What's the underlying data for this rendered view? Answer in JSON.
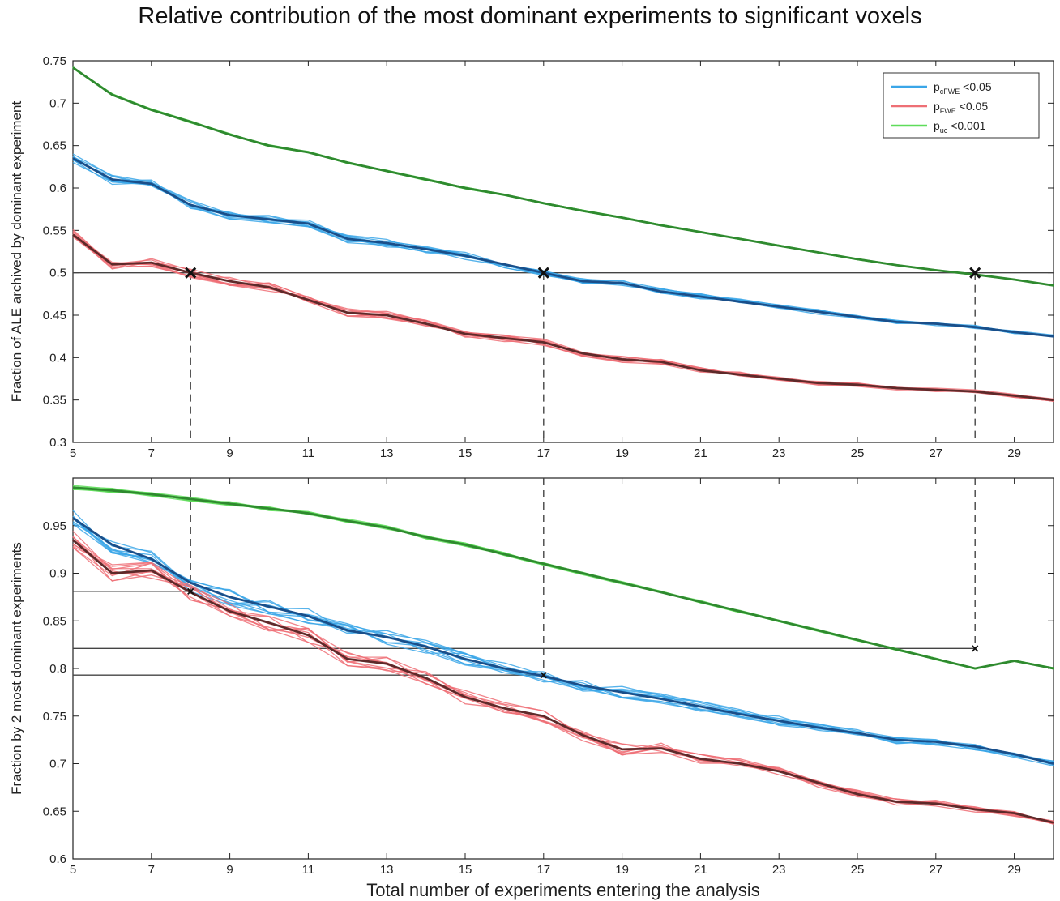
{
  "title": "Relative contribution of the most dominant experiments to significant voxels",
  "xlabel": "Total number of experiments entering the analysis",
  "colors": {
    "blue": "#3aa6e8",
    "blue_mean": "#1a4f8a",
    "red": "#ee6f75",
    "red_mean": "#5e2a2a",
    "green": "#5fdc5a",
    "green_mean": "#2f8a2f",
    "axis": "#222222",
    "reference": "#444444"
  },
  "legend": [
    {
      "main": "p",
      "sub": "cFWE",
      "rest": " <0.05",
      "color": "#3aa6e8"
    },
    {
      "main": "p",
      "sub": "FWE",
      "rest": " <0.05",
      "color": "#ee6f75"
    },
    {
      "main": "p",
      "sub": "uc",
      "rest": " <0.001",
      "color": "#5fdc5a"
    }
  ],
  "chart_data": [
    {
      "type": "line",
      "ylabel": "Fraction of ALE archived by dominant experiment",
      "xlim": [
        5,
        30
      ],
      "ylim": [
        0.3,
        0.75
      ],
      "xticks": [
        5,
        7,
        9,
        11,
        13,
        15,
        17,
        19,
        21,
        23,
        25,
        27,
        29
      ],
      "yticks": [
        0.3,
        0.35,
        0.4,
        0.45,
        0.5,
        0.55,
        0.6,
        0.65,
        0.7,
        0.75
      ],
      "ytick_labels": [
        "0.3",
        "0.35",
        "0.4",
        "0.45",
        "0.5",
        "0.55",
        "0.6",
        "0.65",
        "0.7",
        "0.75"
      ],
      "x": [
        5,
        6,
        7,
        8,
        9,
        10,
        11,
        12,
        13,
        14,
        15,
        16,
        17,
        18,
        19,
        20,
        21,
        22,
        23,
        24,
        25,
        26,
        27,
        28,
        29,
        30
      ],
      "series": [
        {
          "legend": "cFWE",
          "values": [
            0.635,
            0.61,
            0.605,
            0.58,
            0.568,
            0.563,
            0.558,
            0.54,
            0.535,
            0.528,
            0.52,
            0.51,
            0.5,
            0.49,
            0.488,
            0.478,
            0.472,
            0.466,
            0.46,
            0.454,
            0.448,
            0.442,
            0.44,
            0.436,
            0.43,
            0.425
          ]
        },
        {
          "legend": "FWE",
          "values": [
            0.545,
            0.51,
            0.512,
            0.5,
            0.49,
            0.483,
            0.468,
            0.453,
            0.45,
            0.44,
            0.428,
            0.423,
            0.418,
            0.405,
            0.398,
            0.395,
            0.385,
            0.38,
            0.375,
            0.37,
            0.368,
            0.364,
            0.362,
            0.36,
            0.355,
            0.35
          ]
        },
        {
          "legend": "uc",
          "values": [
            0.742,
            0.71,
            0.692,
            0.678,
            0.663,
            0.65,
            0.642,
            0.63,
            0.62,
            0.61,
            0.6,
            0.592,
            0.582,
            0.573,
            0.565,
            0.556,
            0.548,
            0.54,
            0.532,
            0.524,
            0.516,
            0.509,
            0.503,
            0.498,
            0.492,
            0.485
          ]
        }
      ],
      "reference_lines": [
        {
          "y": 0.5,
          "from_x": 5,
          "to_x": 30
        }
      ],
      "verticals": [
        {
          "x": 8,
          "from_y": 0.5
        },
        {
          "x": 17,
          "from_y": 0.5
        },
        {
          "x": 28,
          "from_y": 0.5
        }
      ],
      "markers": [
        {
          "x": 8,
          "y": 0.5,
          "size": "large"
        },
        {
          "x": 17,
          "y": 0.5,
          "size": "large"
        },
        {
          "x": 28,
          "y": 0.5,
          "size": "large"
        }
      ]
    },
    {
      "type": "line",
      "ylabel": "Fraction by 2 most dominant experiments",
      "xlim": [
        5,
        30
      ],
      "ylim": [
        0.6,
        1.0
      ],
      "xticks": [
        5,
        7,
        9,
        11,
        13,
        15,
        17,
        19,
        21,
        23,
        25,
        27,
        29
      ],
      "yticks": [
        0.6,
        0.65,
        0.7,
        0.75,
        0.8,
        0.85,
        0.9,
        0.95
      ],
      "ytick_labels": [
        "0.6",
        "0.65",
        "0.7",
        "0.75",
        "0.8",
        "0.85",
        "0.9",
        "0.95"
      ],
      "x": [
        5,
        6,
        7,
        8,
        9,
        10,
        11,
        12,
        13,
        14,
        15,
        16,
        17,
        18,
        19,
        20,
        21,
        22,
        23,
        24,
        25,
        26,
        27,
        28,
        29,
        30
      ],
      "series": [
        {
          "legend": "cFWE",
          "values": [
            0.958,
            0.93,
            0.915,
            0.89,
            0.875,
            0.865,
            0.855,
            0.84,
            0.833,
            0.823,
            0.81,
            0.8,
            0.792,
            0.782,
            0.775,
            0.768,
            0.76,
            0.752,
            0.745,
            0.738,
            0.732,
            0.725,
            0.723,
            0.718,
            0.71,
            0.7
          ]
        },
        {
          "legend": "FWE",
          "values": [
            0.935,
            0.9,
            0.903,
            0.88,
            0.86,
            0.848,
            0.835,
            0.81,
            0.805,
            0.79,
            0.77,
            0.758,
            0.75,
            0.73,
            0.715,
            0.716,
            0.705,
            0.7,
            0.692,
            0.68,
            0.668,
            0.66,
            0.658,
            0.652,
            0.648,
            0.638
          ]
        },
        {
          "legend": "uc",
          "values": [
            0.99,
            0.987,
            0.983,
            0.978,
            0.973,
            0.968,
            0.963,
            0.955,
            0.948,
            0.938,
            0.93,
            0.92,
            0.91,
            0.9,
            0.89,
            0.88,
            0.87,
            0.86,
            0.85,
            0.84,
            0.83,
            0.82,
            0.81,
            0.8,
            0.808,
            0.8
          ]
        }
      ],
      "reference_lines": [
        {
          "y": 0.881,
          "from_x": 5,
          "to_x": 8
        },
        {
          "y": 0.821,
          "from_x": 5,
          "to_x": 28
        },
        {
          "y": 0.793,
          "from_x": 5,
          "to_x": 17
        }
      ],
      "verticals": [
        {
          "x": 8,
          "to_y": 0.881
        },
        {
          "x": 17,
          "to_y": 0.793
        },
        {
          "x": 28,
          "to_y": 0.821
        }
      ],
      "markers": [
        {
          "x": 8,
          "y": 0.881,
          "size": "small"
        },
        {
          "x": 17,
          "y": 0.793,
          "size": "small"
        },
        {
          "x": 28,
          "y": 0.821,
          "size": "small"
        }
      ]
    }
  ]
}
